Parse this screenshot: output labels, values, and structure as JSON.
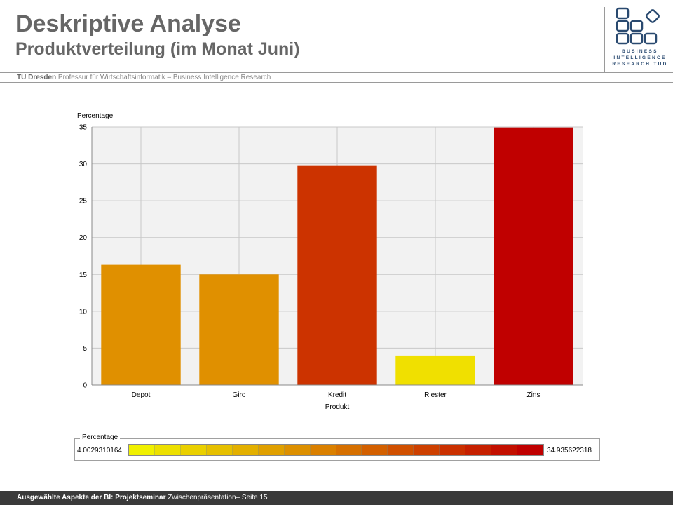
{
  "slide": {
    "title": "Deskriptive Analyse",
    "subtitle": "Produktverteilung (im Monat Juni)",
    "affiliation_bold": "TU Dresden",
    "affiliation_rest": " Professur für Wirtschaftsinformatik – Business Intelligence Research",
    "logo_text": "BUSINESS INTELLIGENCE RESEARCH TUD",
    "footer_bold": "Ausgewählte Aspekte der BI: Projektseminar",
    "footer_rest": " Zwischenpräsentation– Seite 15"
  },
  "chart_data": {
    "type": "bar",
    "categories": [
      "Depot",
      "Giro",
      "Kredit",
      "Riester",
      "Zins"
    ],
    "values": [
      16.3,
      15.0,
      29.8,
      4.0029310164,
      34.935622318
    ],
    "colors": [
      "#e09000",
      "#e09000",
      "#cc3300",
      "#f0e000",
      "#c00000"
    ],
    "xlabel": "Produkt",
    "ylabel": "Percentage",
    "ylim": [
      0,
      35
    ],
    "yticks": [
      "0",
      "5",
      "10",
      "15",
      "20",
      "25",
      "30",
      "35"
    ],
    "grid": true,
    "background": "#f2f2f2",
    "legend": {
      "title": "Percentage",
      "min_label": "4.0029310164",
      "max_label": "34.935622318",
      "color_start": "#f0f000",
      "color_end": "#c00000",
      "placement": "bottom"
    }
  }
}
